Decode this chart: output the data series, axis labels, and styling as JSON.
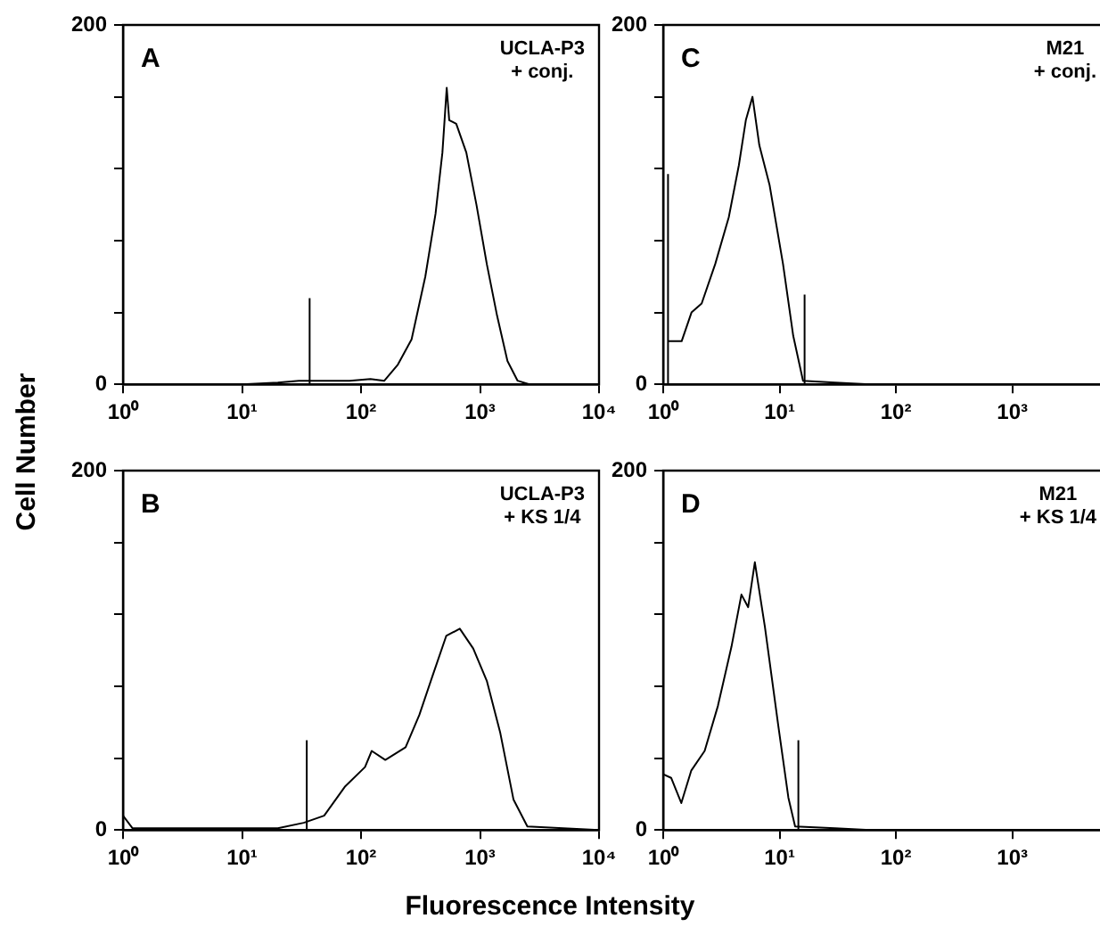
{
  "chart_data": [
    {
      "type": "line",
      "ylabel": "Cell Number",
      "log": "x",
      "marker": "none",
      "xlim": [
        1,
        10000
      ],
      "xticks": [
        {
          "value": 1,
          "label": "10⁰"
        },
        {
          "value": 10,
          "label": "10¹"
        },
        {
          "value": 100,
          "label": "10²"
        },
        {
          "value": 1000,
          "label": "10³"
        },
        {
          "value": 10000,
          "label": "10⁴"
        }
      ],
      "ylim": [
        0,
        200
      ],
      "yticks": [
        {
          "value": 0,
          "label": "0"
        },
        {
          "value": 40,
          "label": null
        },
        {
          "value": 80,
          "label": null
        },
        {
          "value": 120,
          "label": null
        },
        {
          "value": 160,
          "label": null
        },
        {
          "value": 200,
          "label": "200"
        }
      ],
      "annotations": [
        "A",
        "UCLA-P3\n+ conj."
      ],
      "series": [
        {
          "color": "#000000",
          "x": [
            10,
            20,
            30,
            50,
            80,
            120,
            157,
            204,
            266,
            347,
            423,
            483,
            525,
            551,
            631,
            767,
            933,
            1140,
            1393,
            1700,
            2070,
            2600,
            10000
          ],
          "values": [
            0,
            1,
            2,
            2,
            2,
            3,
            2,
            11,
            25,
            60,
            95,
            129,
            165,
            147,
            145,
            129,
            100,
            67,
            38,
            13,
            2,
            0,
            0
          ]
        },
        {
          "color": "#000000",
          "x": [
            37,
            37
          ],
          "values": [
            0,
            48
          ]
        }
      ]
    },
    {
      "type": "line",
      "log": "x",
      "marker": "none",
      "xlim": [
        1,
        7000
      ],
      "xticks": [
        {
          "value": 1,
          "label": "10⁰"
        },
        {
          "value": 10,
          "label": "10¹"
        },
        {
          "value": 100,
          "label": "10²"
        },
        {
          "value": 1000,
          "label": "10³"
        }
      ],
      "ylim": [
        0,
        200
      ],
      "yticks": [
        {
          "value": 0,
          "label": "0"
        },
        {
          "value": 40,
          "label": null
        },
        {
          "value": 80,
          "label": null
        },
        {
          "value": 120,
          "label": null
        },
        {
          "value": 160,
          "label": null
        },
        {
          "value": 200,
          "label": "200"
        }
      ],
      "annotations": [
        "C",
        "M21\n+ conj."
      ],
      "series": [
        {
          "color": "#000000",
          "x": [
            1.1,
            1.44,
            1.75,
            2.14,
            2.8,
            3.66,
            4.47,
            5.13,
            5.85,
            6.7,
            8.2,
            10.7,
            13.1,
            15.9,
            30,
            60,
            7000
          ],
          "values": [
            24,
            24,
            40,
            45,
            67,
            93,
            122,
            147,
            160,
            133,
            111,
            67,
            27,
            2,
            1,
            0,
            0
          ]
        },
        {
          "color": "#000000",
          "x": [
            1.1,
            1.1
          ],
          "values": [
            0,
            117
          ]
        },
        {
          "color": "#000000",
          "x": [
            16.4,
            16.4
          ],
          "values": [
            0,
            50
          ]
        }
      ]
    },
    {
      "type": "line",
      "xlabel": "Fluorescence Intensity",
      "log": "x",
      "marker": "none",
      "xlim": [
        1,
        10000
      ],
      "xticks": [
        {
          "value": 1,
          "label": "10⁰"
        },
        {
          "value": 10,
          "label": "10¹"
        },
        {
          "value": 100,
          "label": "10²"
        },
        {
          "value": 1000,
          "label": "10³"
        },
        {
          "value": 10000,
          "label": "10⁴"
        }
      ],
      "ylim": [
        0,
        200
      ],
      "yticks": [
        {
          "value": 0,
          "label": "0"
        },
        {
          "value": 40,
          "label": null
        },
        {
          "value": 80,
          "label": null
        },
        {
          "value": 120,
          "label": null
        },
        {
          "value": 160,
          "label": null
        },
        {
          "value": 200,
          "label": "200"
        }
      ],
      "annotations": [
        "B",
        "UCLA-P3\n+ KS 1/4"
      ],
      "series": [
        {
          "color": "#000000",
          "x": [
            1,
            1.2,
            3,
            10,
            20,
            33,
            49,
            73,
            108,
            123,
            160,
            237,
            309,
            400,
            520,
            676,
            877,
            1140,
            1480,
            1910,
            2500,
            10000
          ],
          "values": [
            8,
            1,
            1,
            1,
            1,
            4,
            8,
            24,
            35,
            44,
            39,
            46,
            64,
            86,
            108,
            112,
            101,
            83,
            54,
            17,
            2,
            0
          ]
        },
        {
          "color": "#000000",
          "x": [
            35,
            35
          ],
          "values": [
            0,
            50
          ]
        }
      ]
    },
    {
      "type": "line",
      "log": "x",
      "marker": "none",
      "xlim": [
        1,
        7000
      ],
      "xticks": [
        {
          "value": 1,
          "label": "10⁰"
        },
        {
          "value": 10,
          "label": "10¹"
        },
        {
          "value": 100,
          "label": "10²"
        },
        {
          "value": 1000,
          "label": "10³"
        }
      ],
      "ylim": [
        0,
        200
      ],
      "yticks": [
        {
          "value": 0,
          "label": "0"
        },
        {
          "value": 40,
          "label": null
        },
        {
          "value": 80,
          "label": null
        },
        {
          "value": 120,
          "label": null
        },
        {
          "value": 160,
          "label": null
        },
        {
          "value": 200,
          "label": "200"
        }
      ],
      "annotations": [
        "D",
        "M21\n+ KS 1/4"
      ],
      "series": [
        {
          "color": "#000000",
          "x": [
            1,
            1.17,
            1.43,
            1.74,
            2.27,
            2.95,
            3.86,
            4.7,
            5.37,
            6.13,
            7.48,
            9.75,
            11.9,
            13.6,
            30,
            60,
            7000
          ],
          "values": [
            31,
            29,
            15,
            33,
            44,
            69,
            102,
            131,
            124,
            149,
            113,
            58,
            18,
            2,
            1,
            0,
            0
          ]
        },
        {
          "color": "#000000",
          "x": [
            14.5,
            14.5
          ],
          "values": [
            0,
            50
          ]
        }
      ]
    }
  ]
}
